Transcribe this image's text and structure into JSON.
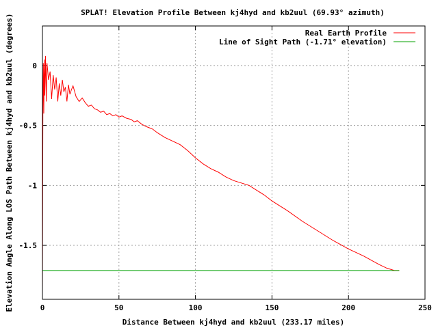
{
  "chart_data": {
    "type": "line",
    "title": "SPLAT! Elevation Profile Between kj4hyd and kb2uul (69.93° azimuth)",
    "xlabel": "Distance Between kj4hyd and kb2uul (233.17 miles)",
    "ylabel": "Elevation Angle Along LOS Path Between kj4hyd and kb2uul (degrees)",
    "xlim": [
      0,
      250
    ],
    "ylim": [
      -1.95,
      0.33
    ],
    "xticks": [
      0,
      50,
      100,
      150,
      200,
      250
    ],
    "yticks": [
      0,
      -0.5,
      -1,
      -1.5
    ],
    "xtick_labels": [
      "0",
      "50",
      "100",
      "150",
      "200",
      "250"
    ],
    "ytick_labels": [
      "0",
      "-0.5",
      "-1",
      "-1.5"
    ],
    "grid": true,
    "legend_position": "top-right",
    "series": [
      {
        "name": "Real Earth Profile",
        "color": "#ff0000",
        "x": [
          0,
          0.3,
          0.6,
          0.9,
          1.2,
          1.5,
          2,
          2.5,
          3,
          3.5,
          4,
          5,
          6,
          7,
          8,
          9,
          10,
          11,
          12,
          13,
          14,
          15,
          16,
          17,
          18,
          19,
          20,
          22,
          24,
          26,
          28,
          30,
          32,
          34,
          36,
          38,
          40,
          42,
          44,
          46,
          48,
          50,
          52,
          55,
          58,
          60,
          62,
          65,
          68,
          70,
          72,
          75,
          80,
          85,
          90,
          95,
          100,
          105,
          110,
          115,
          120,
          125,
          130,
          135,
          140,
          145,
          150,
          160,
          170,
          180,
          190,
          200,
          210,
          220,
          225,
          230,
          233.17
        ],
        "y": [
          -1.9,
          -0.35,
          0.02,
          -0.4,
          0.05,
          -0.25,
          0.08,
          -0.3,
          0.02,
          -0.05,
          -0.12,
          -0.05,
          -0.28,
          -0.08,
          -0.2,
          -0.1,
          -0.3,
          -0.15,
          -0.25,
          -0.12,
          -0.22,
          -0.18,
          -0.3,
          -0.16,
          -0.24,
          -0.2,
          -0.17,
          -0.26,
          -0.3,
          -0.27,
          -0.31,
          -0.34,
          -0.33,
          -0.36,
          -0.37,
          -0.39,
          -0.38,
          -0.41,
          -0.4,
          -0.42,
          -0.41,
          -0.43,
          -0.42,
          -0.44,
          -0.45,
          -0.47,
          -0.46,
          -0.49,
          -0.51,
          -0.52,
          -0.53,
          -0.56,
          -0.6,
          -0.63,
          -0.66,
          -0.71,
          -0.77,
          -0.82,
          -0.86,
          -0.89,
          -0.93,
          -0.96,
          -0.98,
          -1.0,
          -1.04,
          -1.08,
          -1.13,
          -1.21,
          -1.3,
          -1.38,
          -1.46,
          -1.53,
          -1.59,
          -1.66,
          -1.69,
          -1.71,
          -1.71
        ]
      },
      {
        "name": "Line of Sight Path (-1.71° elevation)",
        "color": "#00a000",
        "x": [
          0,
          233.17
        ],
        "y": [
          -1.71,
          -1.71
        ]
      }
    ]
  }
}
